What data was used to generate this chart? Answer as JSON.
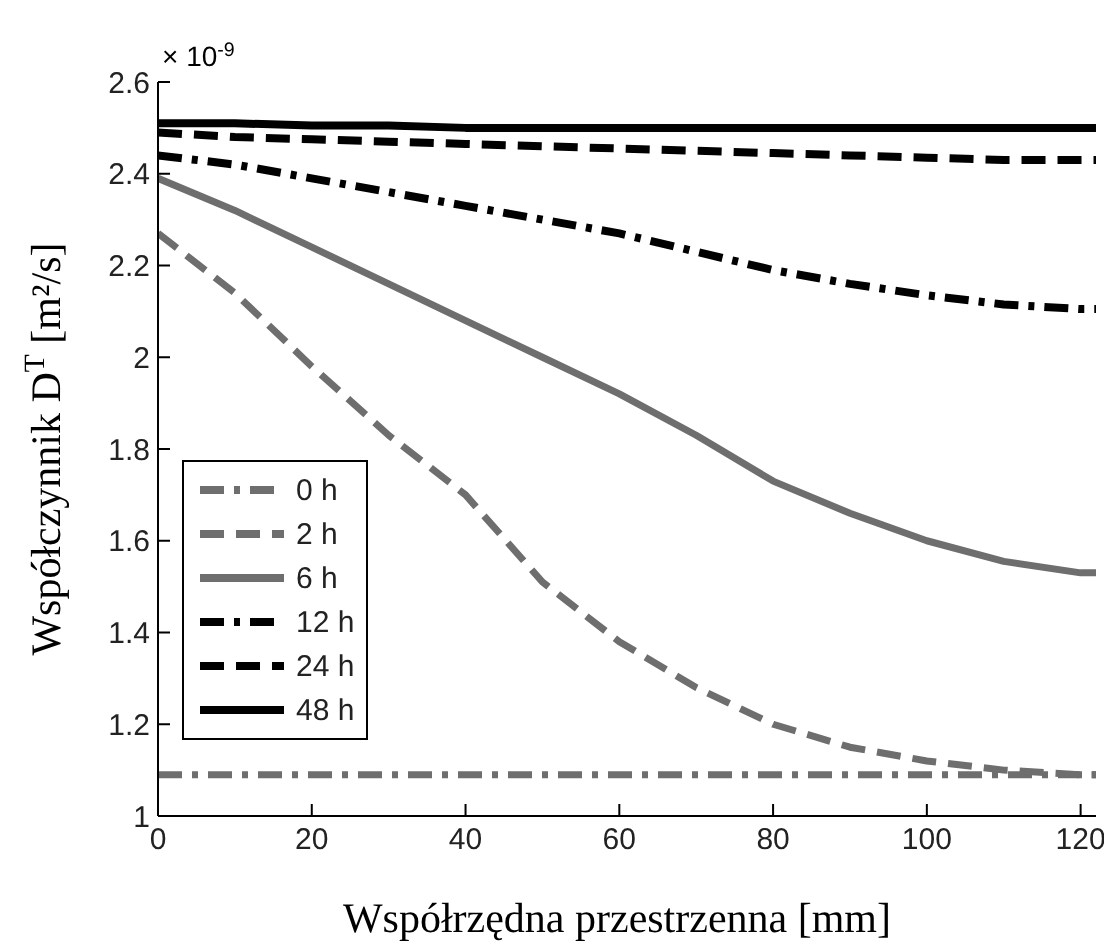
{
  "chart_data": {
    "type": "line",
    "xlabel": "Współrzędna przestrzenna [mm]",
    "ylabel": "Współczynnik D$^{T}$ [m²/s]",
    "annotations": [
      "× 10$^{-9}$"
    ],
    "x": [
      0,
      10,
      20,
      30,
      40,
      50,
      60,
      70,
      80,
      90,
      100,
      110,
      120,
      122
    ],
    "xlim": [
      0,
      122
    ],
    "xticks": [
      0,
      20,
      40,
      60,
      80,
      100,
      120
    ],
    "ylim": [
      1,
      2.6
    ],
    "yticks": [
      1,
      1.2,
      1.4,
      1.6,
      1.8,
      2,
      2.2,
      2.4,
      2.6
    ],
    "legend": "bottom left",
    "marker": "none",
    "series": [
      {
        "name": "0 h",
        "color": "#6e6e6e",
        "line_style": "dashdot",
        "values": [
          1.09,
          1.09,
          1.09,
          1.09,
          1.09,
          1.09,
          1.09,
          1.09,
          1.09,
          1.09,
          1.09,
          1.09,
          1.09,
          1.09
        ]
      },
      {
        "name": "2 h",
        "color": "#6e6e6e",
        "line_style": "dashed",
        "values": [
          2.27,
          2.14,
          1.98,
          1.83,
          1.7,
          1.51,
          1.38,
          1.28,
          1.2,
          1.15,
          1.12,
          1.1,
          1.09,
          1.09
        ]
      },
      {
        "name": "6 h",
        "color": "#6e6e6e",
        "line_style": "solid",
        "values": [
          2.39,
          2.32,
          2.24,
          2.16,
          2.08,
          2,
          1.92,
          1.83,
          1.73,
          1.66,
          1.6,
          1.555,
          1.53,
          1.53
        ]
      },
      {
        "name": "12 h",
        "color": "#000000",
        "line_style": "dashdot",
        "values": [
          2.44,
          2.42,
          2.39,
          2.36,
          2.33,
          2.3,
          2.27,
          2.23,
          2.19,
          2.16,
          2.135,
          2.115,
          2.105,
          2.105
        ]
      },
      {
        "name": "24 h",
        "color": "#000000",
        "line_style": "dashed",
        "values": [
          2.49,
          2.48,
          2.475,
          2.47,
          2.465,
          2.46,
          2.455,
          2.45,
          2.445,
          2.44,
          2.435,
          2.43,
          2.43,
          2.43
        ]
      },
      {
        "name": "48 h",
        "color": "#000000",
        "line_style": "solid",
        "values": [
          2.51,
          2.51,
          2.505,
          2.505,
          2.5,
          2.5,
          2.5,
          2.5,
          2.5,
          2.5,
          2.5,
          2.5,
          2.5,
          2.5
        ]
      }
    ]
  }
}
